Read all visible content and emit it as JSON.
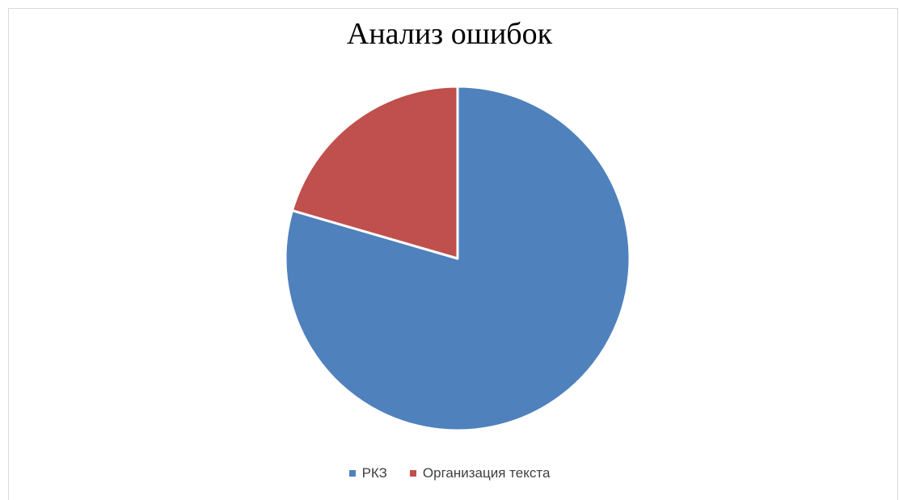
{
  "chart_data": {
    "type": "pie",
    "title": "Анализ ошибок",
    "categories": [
      "РКЗ",
      "Организация текста"
    ],
    "values": [
      79.5,
      20.5
    ],
    "colors": [
      "#4f81bd",
      "#c0504d"
    ],
    "legend_position": "bottom"
  }
}
